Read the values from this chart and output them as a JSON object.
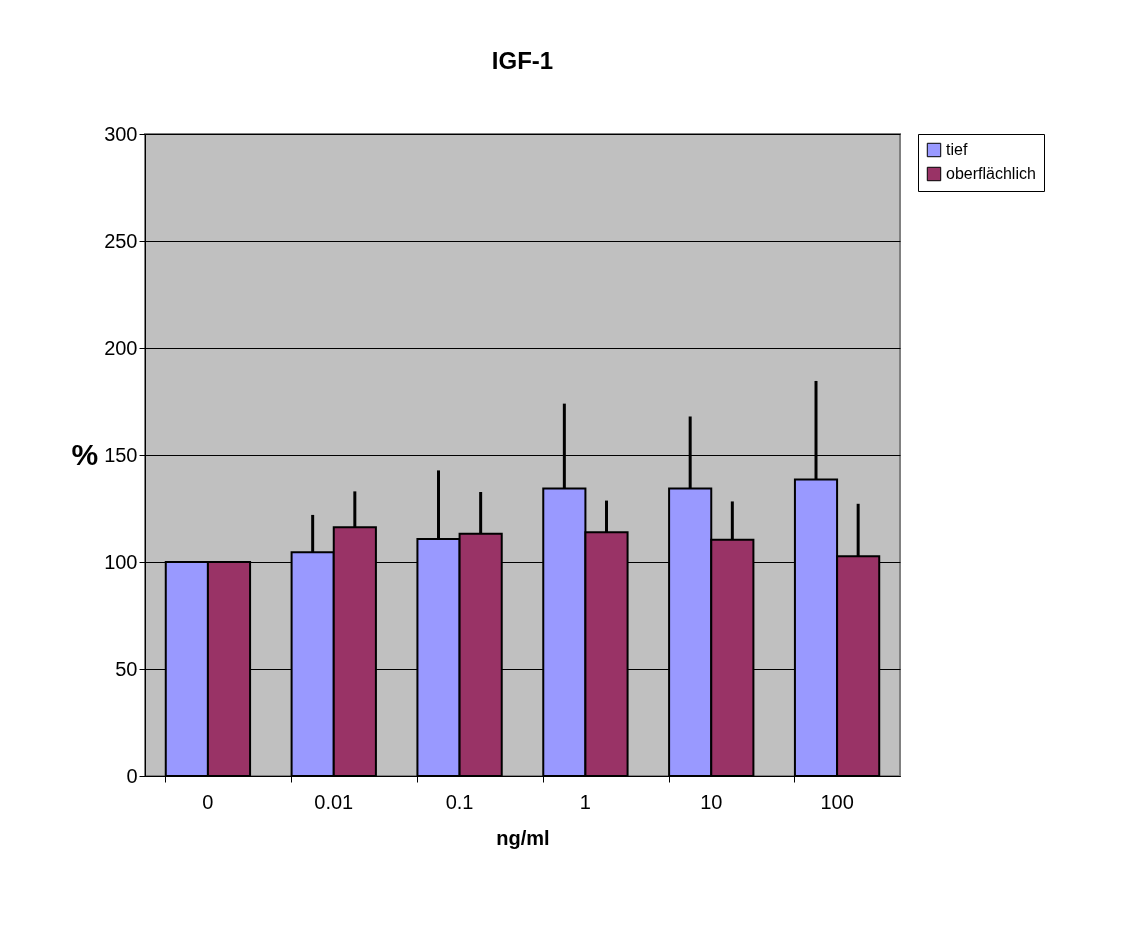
{
  "chart_data": {
    "type": "bar",
    "title": "IGF-1",
    "xlabel": "ng/ml",
    "ylabel": "%",
    "categories": [
      "0",
      "0.01",
      "0.1",
      "1",
      "10",
      "100"
    ],
    "series": [
      {
        "name": "tief",
        "color": "#9999ff",
        "values": [
          100,
          104.5,
          110.7,
          134.4,
          134.4,
          138.6
        ],
        "errors": [
          null,
          [
            104.5,
            122
          ],
          [
            110.7,
            142.8
          ],
          [
            134.4,
            174
          ],
          [
            134.4,
            168
          ],
          [
            138.6,
            184.6
          ]
        ]
      },
      {
        "name": "oberflächlich",
        "color": "#993366",
        "values": [
          100,
          116.2,
          113.2,
          113.9,
          110.4,
          102.7
        ],
        "errors": [
          null,
          [
            116.2,
            133
          ],
          [
            113.2,
            132.7
          ],
          [
            113.9,
            128.7
          ],
          [
            110.4,
            128.3
          ],
          [
            102.7,
            127.2
          ]
        ]
      }
    ],
    "ylim": [
      0,
      300
    ],
    "yticks": [
      0,
      50,
      100,
      150,
      200,
      250,
      300
    ],
    "grid": "y",
    "legend": "right"
  }
}
